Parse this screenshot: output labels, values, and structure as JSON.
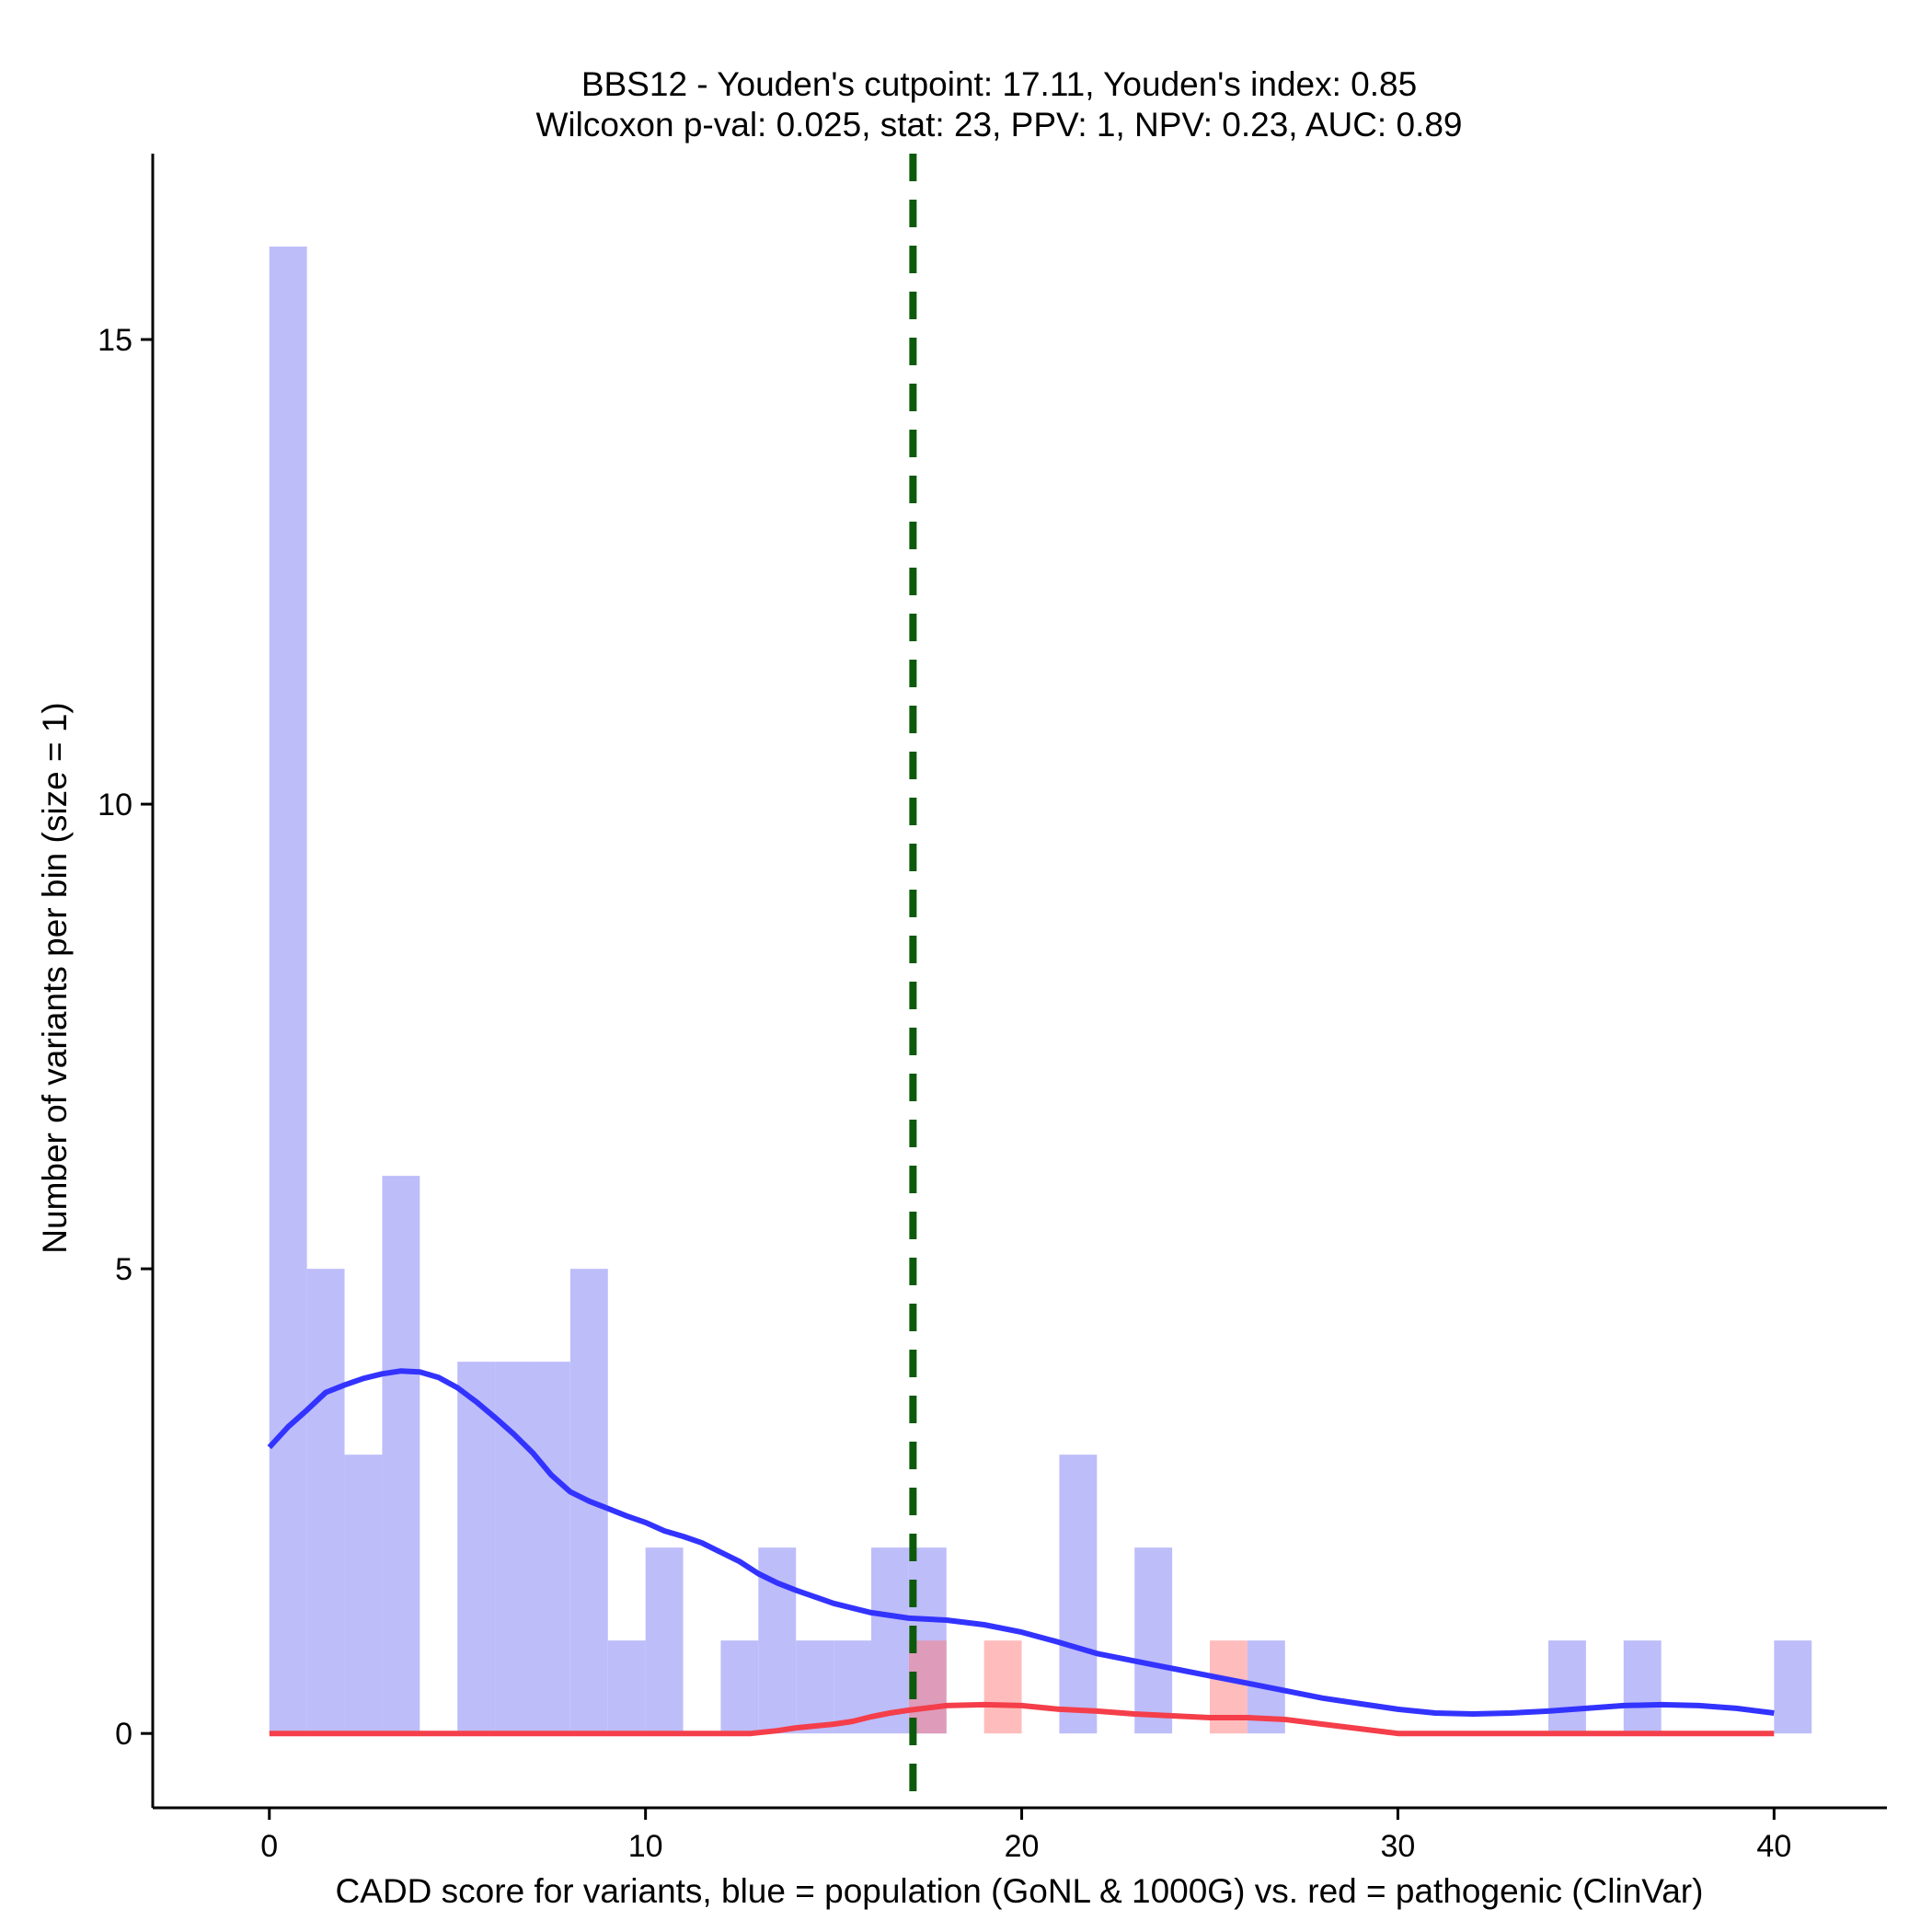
{
  "chart_data": {
    "type": "histogram",
    "title_line1": "BBS12 - Youden's cutpoint: 17.11, Youden's index: 0.85",
    "title_line2": "Wilcoxon p-val: 0.025, stat: 23, PPV: 1, NPV: 0.23, AUC: 0.89",
    "xlabel": "CADD score for variants, blue = population (GoNL & 1000G) vs. red = pathogenic (ClinVar)",
    "ylabel": "Number of variants per bin (size = 1)",
    "xlim": [
      -3.1,
      43.0
    ],
    "ylim": [
      -0.8,
      17.0
    ],
    "x_ticks": [
      0,
      10,
      20,
      30,
      40
    ],
    "x_tick_labels": [
      "0",
      "10",
      "20",
      "30",
      "40"
    ],
    "y_ticks": [
      0,
      5,
      10,
      15
    ],
    "y_tick_labels": [
      "0",
      "5",
      "10",
      "15"
    ],
    "bin_width": 1,
    "cutpoint": 17.11,
    "colors": {
      "population_bar": "#bdbdfa",
      "pathogenic_bar": "#ffbcbc",
      "population_line": "#3333ff",
      "pathogenic_line": "#f43e4a",
      "cutpoint_line": "#0d5a0d"
    },
    "series": [
      {
        "name": "population (GoNL & 1000G)",
        "bins": [
          {
            "start": 0,
            "count": 16
          },
          {
            "start": 1,
            "count": 5
          },
          {
            "start": 2,
            "count": 3
          },
          {
            "start": 3,
            "count": 6
          },
          {
            "start": 5,
            "count": 4
          },
          {
            "start": 6,
            "count": 4
          },
          {
            "start": 7,
            "count": 4
          },
          {
            "start": 8,
            "count": 5
          },
          {
            "start": 9,
            "count": 1
          },
          {
            "start": 10,
            "count": 2
          },
          {
            "start": 12,
            "count": 1
          },
          {
            "start": 13,
            "count": 2
          },
          {
            "start": 14,
            "count": 1
          },
          {
            "start": 15,
            "count": 1
          },
          {
            "start": 16,
            "count": 2
          },
          {
            "start": 17,
            "count": 2
          },
          {
            "start": 21,
            "count": 3
          },
          {
            "start": 23,
            "count": 2
          },
          {
            "start": 26,
            "count": 1
          },
          {
            "start": 34,
            "count": 1
          },
          {
            "start": 36,
            "count": 1
          },
          {
            "start": 40,
            "count": 1
          }
        ],
        "density_curve": [
          [
            0,
            3.08
          ],
          [
            0.5,
            3.3
          ],
          [
            1.0,
            3.48
          ],
          [
            1.5,
            3.67
          ],
          [
            2.0,
            3.75
          ],
          [
            2.5,
            3.82
          ],
          [
            3.0,
            3.87
          ],
          [
            3.5,
            3.9
          ],
          [
            4.0,
            3.89
          ],
          [
            4.5,
            3.83
          ],
          [
            5.0,
            3.72
          ],
          [
            5.5,
            3.57
          ],
          [
            6.0,
            3.4
          ],
          [
            6.5,
            3.22
          ],
          [
            7.0,
            3.02
          ],
          [
            7.5,
            2.78
          ],
          [
            8.0,
            2.6
          ],
          [
            8.5,
            2.5
          ],
          [
            9.0,
            2.42
          ],
          [
            9.5,
            2.34
          ],
          [
            10.0,
            2.27
          ],
          [
            10.5,
            2.18
          ],
          [
            11.0,
            2.12
          ],
          [
            11.5,
            2.05
          ],
          [
            12.0,
            1.95
          ],
          [
            12.5,
            1.85
          ],
          [
            13.0,
            1.72
          ],
          [
            13.5,
            1.62
          ],
          [
            14.0,
            1.54
          ],
          [
            15.0,
            1.4
          ],
          [
            16.0,
            1.3
          ],
          [
            17.0,
            1.24
          ],
          [
            18.0,
            1.22
          ],
          [
            19.0,
            1.17
          ],
          [
            20.0,
            1.09
          ],
          [
            21.0,
            0.98
          ],
          [
            22.0,
            0.86
          ],
          [
            23.0,
            0.78
          ],
          [
            24.0,
            0.7
          ],
          [
            25.0,
            0.62
          ],
          [
            26.0,
            0.54
          ],
          [
            27.0,
            0.46
          ],
          [
            28.0,
            0.38
          ],
          [
            29.0,
            0.32
          ],
          [
            30.0,
            0.26
          ],
          [
            31.0,
            0.22
          ],
          [
            32.0,
            0.21
          ],
          [
            33.0,
            0.22
          ],
          [
            34.0,
            0.24
          ],
          [
            35.0,
            0.27
          ],
          [
            36.0,
            0.3
          ],
          [
            37.0,
            0.31
          ],
          [
            38.0,
            0.3
          ],
          [
            39.0,
            0.27
          ],
          [
            40.0,
            0.22
          ]
        ]
      },
      {
        "name": "pathogenic (ClinVar)",
        "bins": [
          {
            "start": 17,
            "count": 1
          },
          {
            "start": 19,
            "count": 1
          },
          {
            "start": 25,
            "count": 1
          }
        ],
        "density_curve": [
          [
            0,
            0
          ],
          [
            5,
            0
          ],
          [
            10,
            0
          ],
          [
            12.8,
            0
          ],
          [
            13.5,
            0.03
          ],
          [
            14.0,
            0.06
          ],
          [
            15.0,
            0.1
          ],
          [
            15.5,
            0.13
          ],
          [
            16.0,
            0.18
          ],
          [
            16.5,
            0.22
          ],
          [
            17.0,
            0.25
          ],
          [
            18.0,
            0.3
          ],
          [
            19.0,
            0.31
          ],
          [
            20.0,
            0.3
          ],
          [
            21.0,
            0.26
          ],
          [
            22.0,
            0.24
          ],
          [
            23.0,
            0.21
          ],
          [
            24.0,
            0.19
          ],
          [
            25.0,
            0.17
          ],
          [
            26.0,
            0.17
          ],
          [
            27.0,
            0.15
          ],
          [
            28.0,
            0.1
          ],
          [
            29.0,
            0.05
          ],
          [
            30.0,
            0.0
          ],
          [
            35.0,
            0
          ],
          [
            40.0,
            0
          ]
        ]
      }
    ]
  }
}
